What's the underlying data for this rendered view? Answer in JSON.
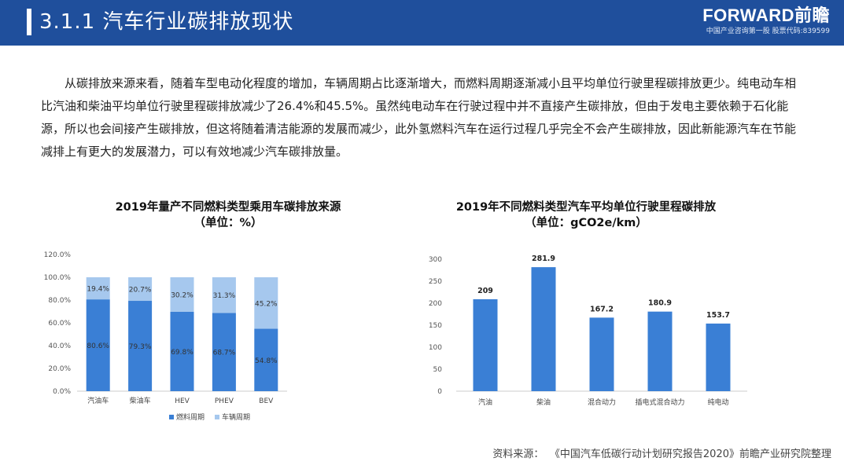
{
  "header": {
    "title": "3.1.1  汽车行业碳排放现状",
    "logo_main": "FORWARD前瞻",
    "logo_sub": "中国产业咨询第一股 股票代码:839599"
  },
  "paragraph": "从碳排放来源来看，随着车型电动化程度的增加，车辆周期占比逐渐增大，而燃料周期逐渐减小且平均单位行驶里程碳排放更少。纯电动车相比汽油和柴油平均单位行驶里程碳排放减少了26.4%和45.5%。虽然纯电动车在行驶过程中并不直接产生碳排放，但由于发电主要依赖于石化能源，所以也会间接产生碳排放，但这将随着清洁能源的发展而减少，此外氢燃料汽车在运行过程几乎完全不会产生碳排放，因此新能源汽车在节能减排上有更大的发展潜力，可以有效地减少汽车碳排放量。",
  "colors": {
    "dark_blue": "#3a7fd5",
    "light_blue": "#a6c8ee",
    "header_bg": "#1f4f9c"
  },
  "chart_data": [
    {
      "type": "bar",
      "stacked": true,
      "title": "2019年量产不同燃料类型乘用车碳排放来源",
      "subtitle": "（单位：%）",
      "categories": [
        "汽油车",
        "柴油车",
        "HEV",
        "PHEV",
        "BEV"
      ],
      "series": [
        {
          "name": "燃料周期",
          "values": [
            80.6,
            79.3,
            69.8,
            68.7,
            54.8
          ],
          "labels": [
            "80.6%",
            "79.3%",
            "69.8%",
            "68.7%",
            "54.8%"
          ]
        },
        {
          "name": "车辆周期",
          "values": [
            19.4,
            20.7,
            30.2,
            31.3,
            45.2
          ],
          "labels": [
            "19.4%",
            "20.7%",
            "30.2%",
            "31.3%",
            "45.2%"
          ]
        }
      ],
      "ylim": [
        0,
        120
      ],
      "yticks": [
        "0.0%",
        "20.0%",
        "40.0%",
        "60.0%",
        "80.0%",
        "100.0%",
        "120.0%"
      ],
      "legend": "bottom",
      "grid": false
    },
    {
      "type": "bar",
      "title": "2019年不同燃料类型汽车平均单位行驶里程碳排放",
      "subtitle": "（单位：gCO2e/km）",
      "categories": [
        "汽油",
        "柴油",
        "混合动力",
        "插电式混合动力",
        "纯电动"
      ],
      "values": [
        209,
        281.9,
        167.2,
        180.9,
        153.7
      ],
      "labels": [
        "209",
        "281.9",
        "167.2",
        "180.9",
        "153.7"
      ],
      "ylim": [
        0,
        300
      ],
      "yticks": [
        "0",
        "50",
        "100",
        "150",
        "200",
        "250",
        "300"
      ],
      "grid": false
    }
  ],
  "source": {
    "label": "资料来源：",
    "text": "《中国汽车低碳行动计划研究报告2020》前瞻产业研究院整理"
  }
}
